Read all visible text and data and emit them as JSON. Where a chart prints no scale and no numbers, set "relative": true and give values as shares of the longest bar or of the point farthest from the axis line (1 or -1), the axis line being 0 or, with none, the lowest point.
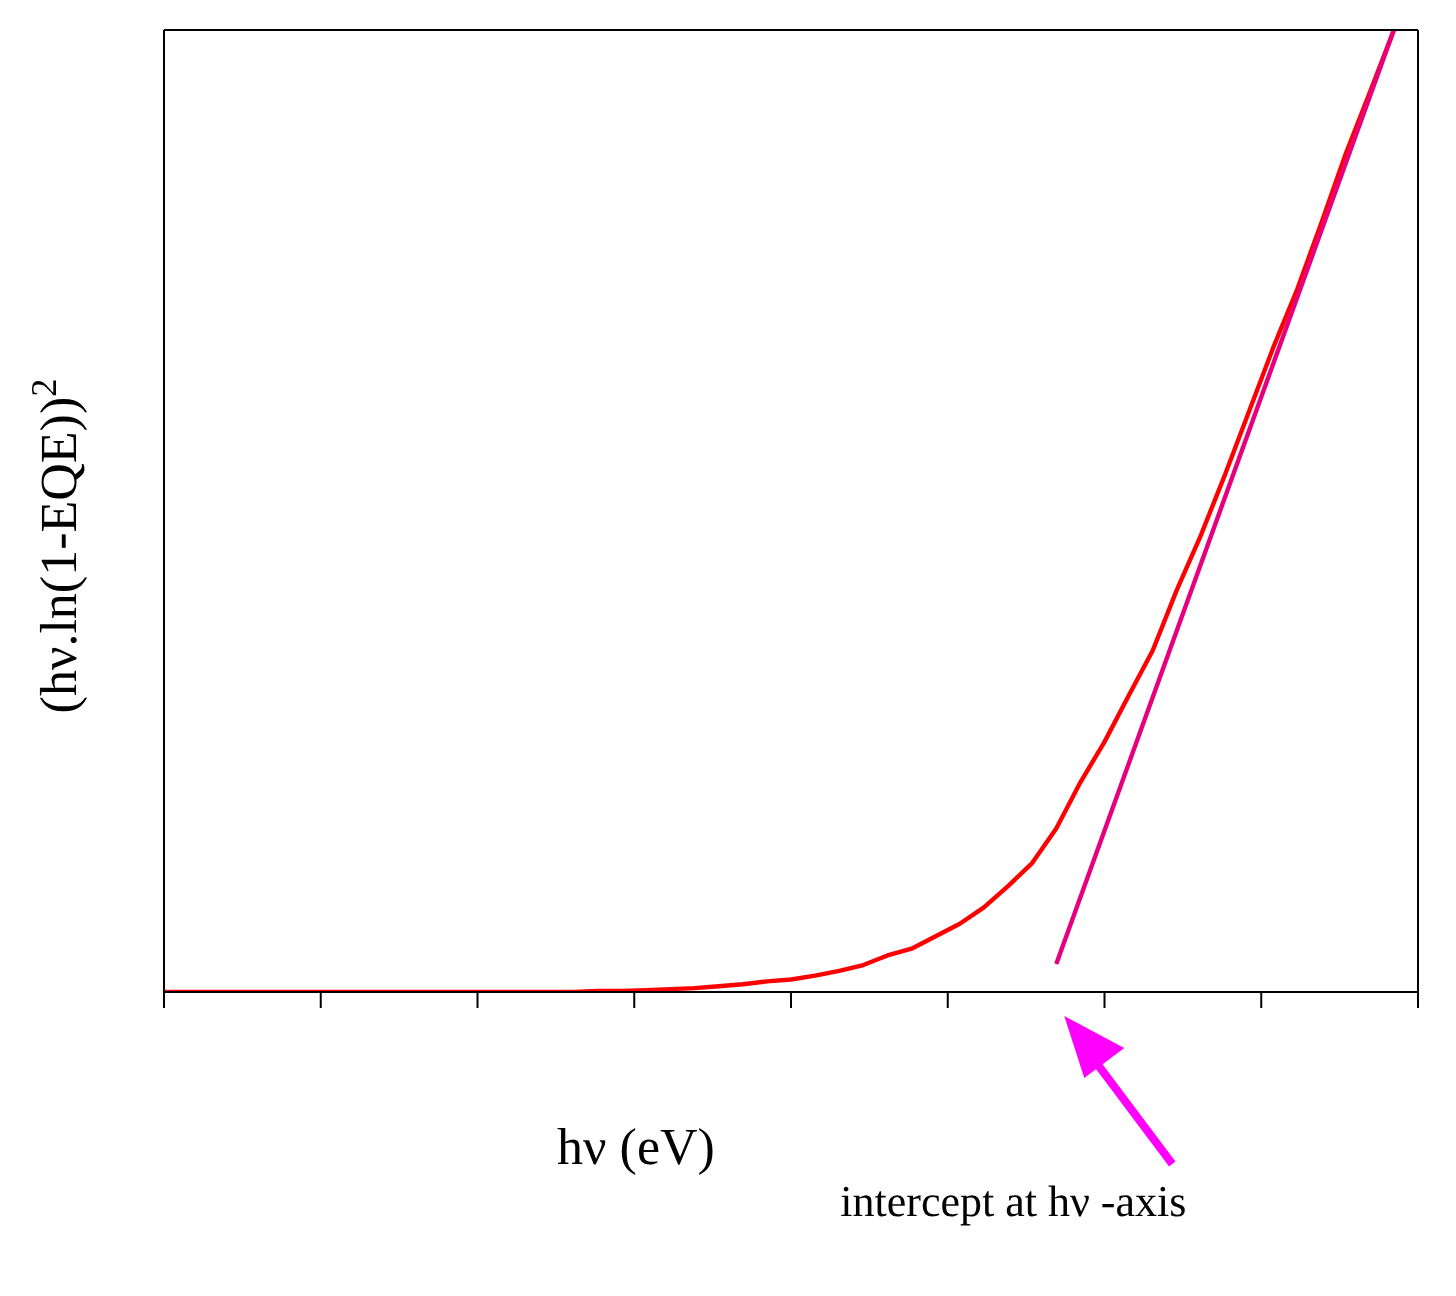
{
  "chart_data": {
    "type": "line",
    "relative": true,
    "xlabel": "hν (eV)",
    "ylabel": "(hν.ln(1-EQE))$^{2}$",
    "marker": "none",
    "line_style": "solid",
    "categories": [
      null,
      null,
      null,
      null,
      null,
      null,
      null,
      null,
      null,
      null,
      null,
      null,
      null,
      null,
      null,
      null,
      null,
      null,
      null,
      null,
      null,
      null,
      null,
      null,
      null,
      null,
      null,
      null,
      null,
      null,
      null,
      null,
      null,
      null,
      null,
      null,
      null,
      null,
      null,
      null,
      null,
      null,
      null,
      null,
      null,
      null,
      null,
      null,
      null,
      null,
      null,
      null,
      null
    ],
    "series": [
      {
        "color": "#ff0000",
        "values": [
          0,
          0,
          0,
          0,
          0,
          0,
          0,
          0,
          0,
          0,
          0,
          0,
          0,
          0,
          0,
          0,
          0,
          0,
          0.001,
          0.001,
          0.002,
          0.003,
          0.004,
          0.006,
          0.008,
          0.011,
          0.013,
          0.017,
          0.022,
          0.028,
          0.038,
          0.045,
          0.058,
          0.071,
          0.088,
          0.11,
          0.134,
          0.17,
          0.218,
          0.26,
          0.308,
          0.355,
          0.418,
          0.475,
          0.538,
          0.604,
          0.67,
          0.731,
          0.8,
          0.871,
          0.935,
          1.0,
          null
        ]
      },
      {
        "color": "#e6007e",
        "values": [
          null,
          null,
          null,
          null,
          null,
          null,
          null,
          null,
          null,
          null,
          null,
          null,
          null,
          null,
          null,
          null,
          null,
          null,
          null,
          null,
          null,
          null,
          null,
          null,
          null,
          null,
          null,
          null,
          null,
          null,
          null,
          null,
          null,
          null,
          null,
          null,
          null,
          0.029,
          null,
          null,
          null,
          null,
          null,
          null,
          null,
          null,
          null,
          null,
          null,
          null,
          null,
          1.0,
          null
        ]
      }
    ],
    "annotations": [
      "intercept at hν -axis"
    ]
  }
}
